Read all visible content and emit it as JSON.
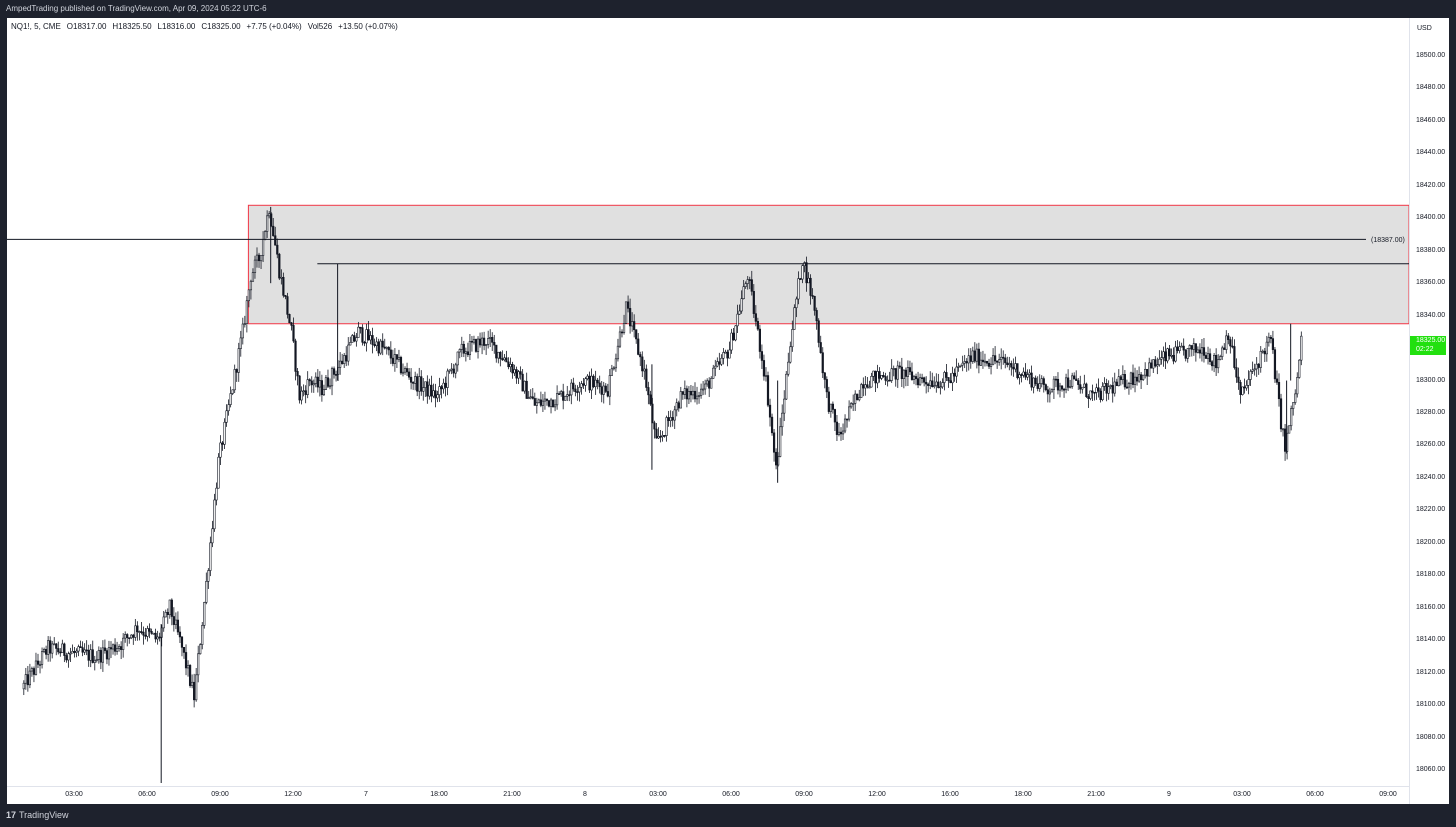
{
  "header": {
    "published": "AmpedTrading published on TradingView.com, Apr 09, 2024 05:22 UTC-6"
  },
  "legend": {
    "symbol": "NQ1!, 5, CME",
    "open": "O18317.00",
    "high": "H18325.50",
    "low": "L18316.00",
    "close": "C18325.00",
    "change": "+7.75 (+0.04%)",
    "volume": "Vol526",
    "volume_change": "+13.50 (+0.07%)"
  },
  "price_axis": {
    "currency": "USD",
    "ticks": [
      "18500.00",
      "18480.00",
      "18460.00",
      "18440.00",
      "18420.00",
      "18400.00",
      "18380.00",
      "18360.00",
      "18340.00",
      "18300.00",
      "18280.00",
      "18260.00",
      "18240.00",
      "18220.00",
      "18200.00",
      "18180.00",
      "18160.00",
      "18140.00",
      "18120.00",
      "18100.00",
      "18080.00",
      "18060.00"
    ],
    "last_price": "18325.00",
    "countdown": "02:22"
  },
  "time_axis": {
    "labels": [
      "03:00",
      "06:00",
      "09:00",
      "12:00",
      "7",
      "18:00",
      "21:00",
      "8",
      "03:00",
      "06:00",
      "09:00",
      "12:00",
      "16:00",
      "18:00",
      "21:00",
      "9",
      "03:00",
      "06:00",
      "09:00"
    ]
  },
  "annotations": {
    "level_label": "(18387.00)"
  },
  "footer": {
    "brand": "TradingView",
    "mark": "17"
  },
  "colors": {
    "candle": "#131722",
    "zone_fill": "#e0e0e0",
    "zone_border": "#f23645",
    "last_price": "#22e00f",
    "background": "#ffffff",
    "frame": "#1e222d"
  },
  "chart_data": {
    "type": "candlestick",
    "symbol": "NQ1!",
    "interval": "5",
    "exchange": "CME",
    "ylim": [
      18050,
      18510
    ],
    "y_ticks": [
      18060,
      18080,
      18100,
      18120,
      18140,
      18160,
      18180,
      18200,
      18220,
      18240,
      18260,
      18280,
      18300,
      18340,
      18360,
      18380,
      18400,
      18420,
      18440,
      18460,
      18480,
      18500
    ],
    "x_tick_labels": [
      "03:00",
      "06:00",
      "09:00",
      "12:00",
      "7",
      "18:00",
      "21:00",
      "8",
      "03:00",
      "06:00",
      "09:00",
      "12:00",
      "16:00",
      "18:00",
      "21:00",
      "9",
      "03:00",
      "06:00",
      "09:00"
    ],
    "zone": {
      "top": 18408,
      "bottom": 18335
    },
    "horizontal_levels": [
      18387,
      18372
    ],
    "last": {
      "open": 18317.0,
      "high": 18325.5,
      "low": 18316.0,
      "close": 18325.0
    },
    "price_path": [
      {
        "t": "Apr 06 00:55",
        "p": 18110
      },
      {
        "t": "Apr 06 02:00",
        "p": 18135
      },
      {
        "t": "Apr 06 03:00",
        "p": 18132
      },
      {
        "t": "Apr 06 04:00",
        "p": 18130
      },
      {
        "t": "Apr 06 05:00",
        "p": 18138
      },
      {
        "t": "Apr 06 05:40",
        "p": 18148
      },
      {
        "t": "Apr 06 06:30",
        "p": 18140
      },
      {
        "t": "Apr 06 07:00",
        "p": 18160
      },
      {
        "t": "Apr 06 07:30",
        "p": 18135
      },
      {
        "t": "Apr 06 08:00",
        "p": 18105
      },
      {
        "t": "Apr 06 08:30",
        "p": 18175
      },
      {
        "t": "Apr 06 09:00",
        "p": 18250
      },
      {
        "t": "Apr 06 09:30",
        "p": 18290
      },
      {
        "t": "Apr 06 10:00",
        "p": 18330
      },
      {
        "t": "Apr 06 10:20",
        "p": 18365
      },
      {
        "t": "Apr 06 10:40",
        "p": 18375
      },
      {
        "t": "Apr 06 11:05",
        "p": 18407
      },
      {
        "t": "Apr 06 11:30",
        "p": 18368
      },
      {
        "t": "Apr 06 12:00",
        "p": 18330
      },
      {
        "t": "Apr 06 12:20",
        "p": 18290
      },
      {
        "t": "Apr 06 12:45",
        "p": 18300
      },
      {
        "t": "Apr 06 13:15",
        "p": 18295
      },
      {
        "t": "Apr 06 14:00",
        "p": 18310
      },
      {
        "t": "Apr 06 14:45",
        "p": 18330
      },
      {
        "t": "Apr 06 15:45",
        "p": 18320
      },
      {
        "t": "Apr 06 17:00",
        "p": 18300
      },
      {
        "t": "Apr 06 18:00",
        "p": 18290
      },
      {
        "t": "Apr 06 19:00",
        "p": 18318
      },
      {
        "t": "Apr 06 20:00",
        "p": 18325
      },
      {
        "t": "Apr 06 21:00",
        "p": 18310
      },
      {
        "t": "Apr 06 22:00",
        "p": 18285
      },
      {
        "t": "Apr 06 23:00",
        "p": 18290
      },
      {
        "t": "Apr 07 00:00",
        "p": 18300
      },
      {
        "t": "Apr 07 01:00",
        "p": 18295
      },
      {
        "t": "Apr 07 01:45",
        "p": 18345
      },
      {
        "t": "Apr 07 02:30",
        "p": 18305
      },
      {
        "t": "Apr 07 03:00",
        "p": 18260
      },
      {
        "t": "Apr 07 04:00",
        "p": 18290
      },
      {
        "t": "Apr 07 05:00",
        "p": 18295
      },
      {
        "t": "Apr 07 06:00",
        "p": 18320
      },
      {
        "t": "Apr 07 06:45",
        "p": 18365
      },
      {
        "t": "Apr 07 07:30",
        "p": 18300
      },
      {
        "t": "Apr 07 07:55",
        "p": 18245
      },
      {
        "t": "Apr 07 08:30",
        "p": 18325
      },
      {
        "t": "Apr 07 09:00",
        "p": 18375
      },
      {
        "t": "Apr 07 09:30",
        "p": 18345
      },
      {
        "t": "Apr 07 10:00",
        "p": 18290
      },
      {
        "t": "Apr 07 10:30",
        "p": 18265
      },
      {
        "t": "Apr 07 11:30",
        "p": 18300
      },
      {
        "t": "Apr 07 13:00",
        "p": 18305
      },
      {
        "t": "Apr 07 14:00",
        "p": 18300
      },
      {
        "t": "Apr 07 15:00",
        "p": 18300
      },
      {
        "t": "Apr 07 16:00",
        "p": 18315
      },
      {
        "t": "Apr 07 17:30",
        "p": 18310
      },
      {
        "t": "Apr 07 19:00",
        "p": 18295
      },
      {
        "t": "Apr 07 20:00",
        "p": 18300
      },
      {
        "t": "Apr 07 21:00",
        "p": 18290
      },
      {
        "t": "Apr 07 22:00",
        "p": 18298
      },
      {
        "t": "Apr 07 23:00",
        "p": 18305
      },
      {
        "t": "Apr 08 00:00",
        "p": 18315
      },
      {
        "t": "Apr 08 01:00",
        "p": 18318
      },
      {
        "t": "Apr 08 01:30",
        "p": 18320
      },
      {
        "t": "Apr 08 02:00",
        "p": 18310
      },
      {
        "t": "Apr 08 02:30",
        "p": 18330
      },
      {
        "t": "Apr 08 03:00",
        "p": 18290
      },
      {
        "t": "Apr 08 03:30",
        "p": 18305
      },
      {
        "t": "Apr 08 04:00",
        "p": 18320
      },
      {
        "t": "Apr 08 04:15",
        "p": 18325
      },
      {
        "t": "Apr 08 04:40",
        "p": 18275
      },
      {
        "t": "Apr 08 04:50",
        "p": 18258
      },
      {
        "t": "Apr 08 05:20",
        "p": 18300
      },
      {
        "t": "Apr 08 05:30",
        "p": 18325
      }
    ]
  }
}
